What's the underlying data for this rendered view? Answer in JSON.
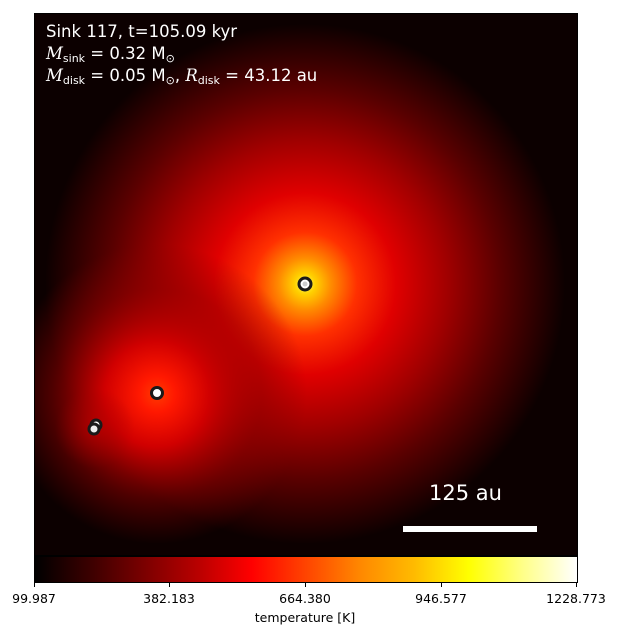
{
  "plot": {
    "info_line1": "Sink 117, t=105.09 kyr",
    "m_sink_symbol": "M",
    "m_sink_sub": "sink",
    "m_sink_value": "= 0.32 M",
    "m_sink_unit_sub": "⊙",
    "m_disk_symbol": "M",
    "m_disk_sub": "disk",
    "m_disk_value": "= 0.05 M",
    "m_disk_unit_sub": "⊙",
    "r_disk_symbol": "R",
    "r_disk_sub": "disk",
    "r_disk_value": "= 43.12 au",
    "scale_bar_label": "125 au",
    "colors": {
      "background": "#0c0000",
      "hot_core": "#ffff40",
      "warm": "#ff2200"
    }
  },
  "colorbar": {
    "ticks": [
      "99.987",
      "382.183",
      "664.380",
      "946.577",
      "1228.773"
    ],
    "label": "temperature [K]"
  }
}
